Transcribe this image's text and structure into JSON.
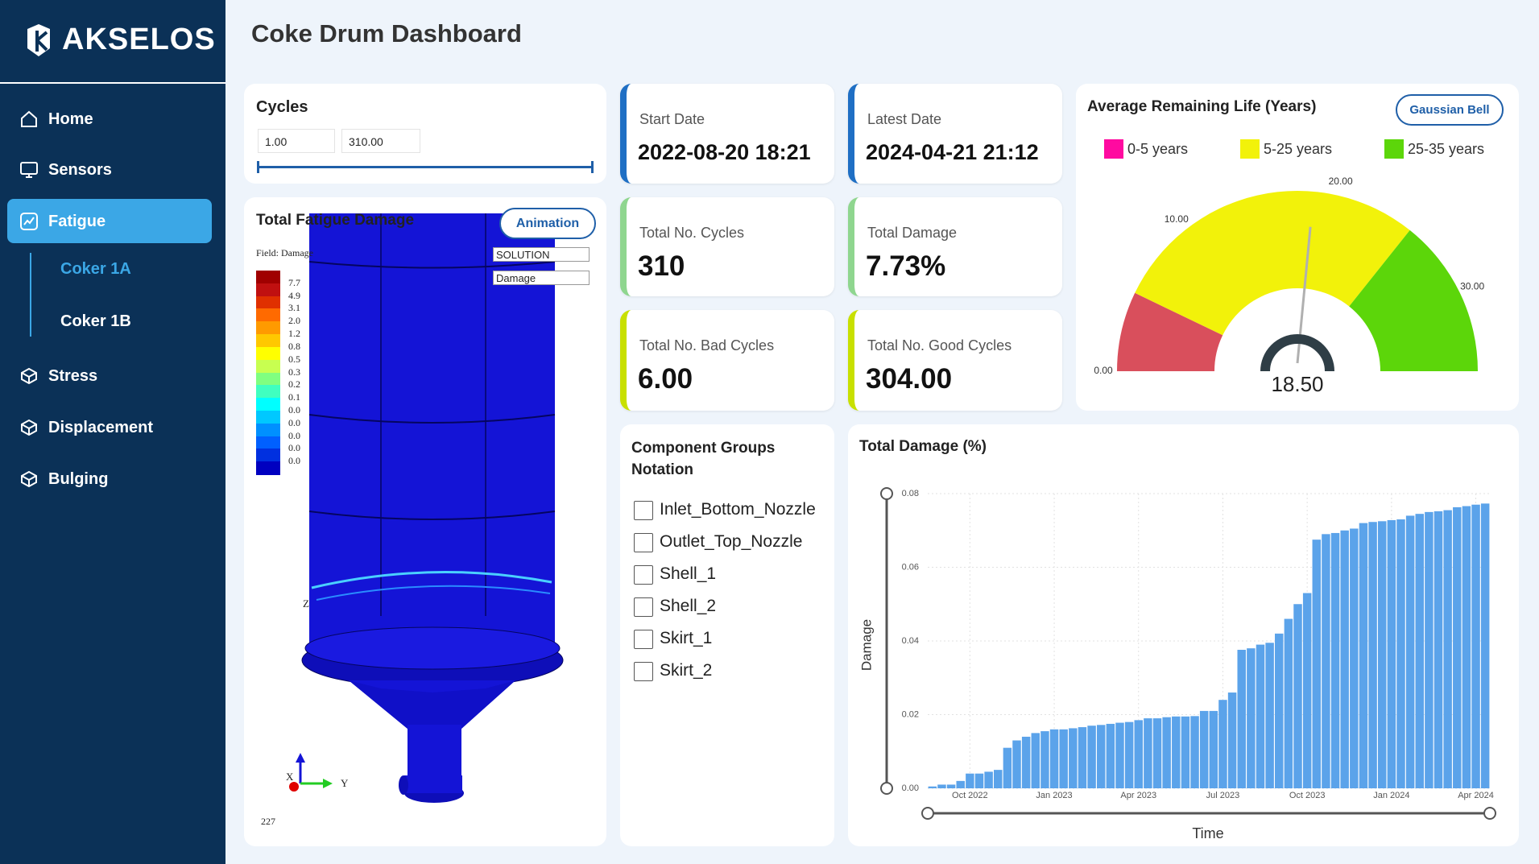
{
  "sidebar": {
    "logo": "AKSELOS",
    "nav": [
      "Home",
      "Sensors",
      "Fatigue",
      "Coker 1A",
      "Coker 1B",
      "Stress",
      "Displacement",
      "Bulging"
    ]
  },
  "header": {
    "title": "Coke Drum Dashboard"
  },
  "cycles": {
    "title": "Cycles",
    "min": "1.00",
    "max": "310.00"
  },
  "fatigue": {
    "title": "Total Fatigue Damage",
    "button": "Animation",
    "field": "Field: Damage",
    "selects": [
      "SOLUTION",
      "Damage"
    ],
    "colorbar": {
      "colors": [
        "#a00000",
        "#c01010",
        "#e03000",
        "#ff6a00",
        "#ff9a00",
        "#ffc800",
        "#ffff00",
        "#c8ff50",
        "#80ff80",
        "#40ffc0",
        "#00ffff",
        "#00c8ff",
        "#0090ff",
        "#0060ff",
        "#0030e0",
        "#0000c0"
      ],
      "labels": [
        "7.7",
        "4.9",
        "3.1",
        "2.0",
        "1.2",
        "0.8",
        "0.5",
        "0.3",
        "0.2",
        "0.1",
        "0.0",
        "0.0",
        "0.0",
        "0.0",
        "0.0"
      ]
    },
    "axes": [
      "Z",
      "Y",
      "X"
    ],
    "frame": "227"
  },
  "cards": [
    {
      "label": "Start Date",
      "value": "2022-08-20 18:21"
    },
    {
      "label": "Latest Date",
      "value": "2024-04-21 21:12"
    },
    {
      "label": "Total No. Cycles",
      "value": "310"
    },
    {
      "label": "Total Damage",
      "value": "7.73%"
    },
    {
      "label": "Total No. Bad Cycles",
      "value": "6.00"
    },
    {
      "label": "Total No. Good Cycles",
      "value": "304.00"
    }
  ],
  "components": {
    "title": "Component Groups Notation",
    "items": [
      "Inlet_Bottom_Nozzle",
      "Outlet_Top_Nozzle",
      "Shell_1",
      "Shell_2",
      "Skirt_1",
      "Skirt_2"
    ]
  },
  "chart_data": [
    {
      "type": "gauge",
      "title": "Average Remaining Life (Years)",
      "button": "Gaussian Bell",
      "series": [
        {
          "name": "0-5 years",
          "color": "#ff0aa0",
          "arc_color": "#d94f5c",
          "from": 0,
          "to": 5
        },
        {
          "name": "5-25 years",
          "color": "#f2f20a",
          "arc_color": "#f2f20a",
          "from": 5,
          "to": 25
        },
        {
          "name": "25-35 years",
          "color": "#5cd60a",
          "arc_color": "#5cd60a",
          "from": 25,
          "to": 35
        }
      ],
      "ylim": [
        0,
        35
      ],
      "yticks": [
        {
          "value": 0,
          "label": "0.00"
        },
        {
          "value": 10,
          "label": "10.00"
        },
        {
          "value": 20,
          "label": "20.00"
        },
        {
          "value": 30,
          "label": "30.00"
        }
      ],
      "value": 18.5,
      "value_label": "18.50"
    },
    {
      "type": "bar",
      "title": "Total Damage (%)",
      "ylabel": "Damage",
      "xlabel": "Time",
      "color": "#5ba3ea",
      "grid": true,
      "categories": [
        null,
        null,
        null,
        null,
        "Oct 2022",
        null,
        null,
        null,
        null,
        null,
        null,
        null,
        null,
        "Jan 2023",
        null,
        null,
        null,
        null,
        null,
        null,
        null,
        null,
        "Apr 2023",
        null,
        null,
        null,
        null,
        null,
        null,
        null,
        null,
        "Jul 2023",
        null,
        null,
        null,
        null,
        null,
        null,
        null,
        null,
        "Oct 2023",
        null,
        null,
        null,
        null,
        null,
        null,
        null,
        null,
        "Jan 2024",
        null,
        null,
        null,
        null,
        null,
        null,
        null,
        null,
        "Apr 2024",
        null
      ],
      "values": [
        0.0005,
        0.001,
        0.001,
        0.002,
        0.004,
        0.004,
        0.0045,
        0.005,
        0.011,
        0.013,
        0.014,
        0.015,
        0.0155,
        0.016,
        0.016,
        0.0163,
        0.0166,
        0.017,
        0.0172,
        0.0175,
        0.0178,
        0.018,
        0.0185,
        0.019,
        0.019,
        0.0193,
        0.0195,
        0.0195,
        0.0196,
        0.021,
        0.021,
        0.024,
        0.026,
        0.0376,
        0.038,
        0.039,
        0.0395,
        0.042,
        0.046,
        0.05,
        0.053,
        0.0675,
        0.069,
        0.0693,
        0.07,
        0.0705,
        0.072,
        0.0723,
        0.0725,
        0.0728,
        0.073,
        0.074,
        0.0745,
        0.075,
        0.0752,
        0.0755,
        0.0763,
        0.0766,
        0.077,
        0.0773
      ],
      "ylim": [
        0,
        0.08
      ],
      "yticks": [
        {
          "value": 0,
          "label": "0.00"
        },
        {
          "value": 0.02,
          "label": "0.02"
        },
        {
          "value": 0.04,
          "label": "0.04"
        },
        {
          "value": 0.06,
          "label": "0.06"
        },
        {
          "value": 0.08,
          "label": "0.08"
        }
      ]
    }
  ]
}
